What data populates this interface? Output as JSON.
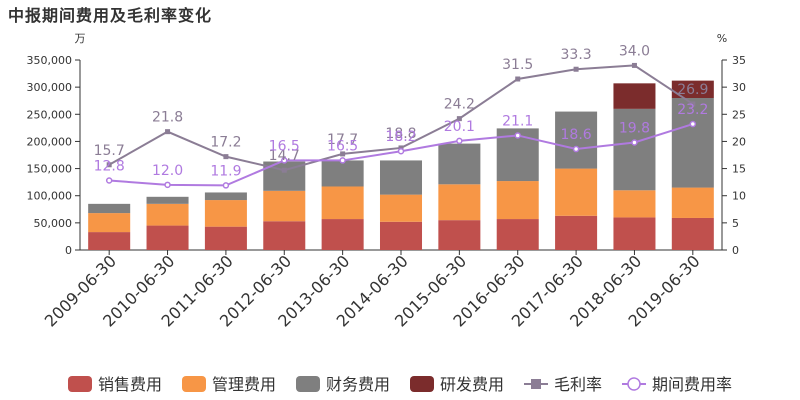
{
  "chart_data": {
    "type": "bar",
    "title": "中报期间费用及毛利率变化",
    "y_left_unit": "万",
    "y_right_unit": "%",
    "categories": [
      "2009-06-30",
      "2010-06-30",
      "2011-06-30",
      "2012-06-30",
      "2013-06-30",
      "2014-06-30",
      "2015-06-30",
      "2016-06-30",
      "2017-06-30",
      "2018-06-30",
      "2019-06-30"
    ],
    "ylim": [
      0,
      350000
    ],
    "yticks": [
      0,
      50000,
      100000,
      150000,
      200000,
      250000,
      300000,
      350000
    ],
    "ytick_labels": [
      "0",
      "50,000",
      "100,000",
      "150,000",
      "200,000",
      "250,000",
      "300,000",
      "350,000"
    ],
    "y2lim": [
      0,
      35
    ],
    "y2ticks": [
      0,
      5,
      10,
      15,
      20,
      25,
      30,
      35
    ],
    "y2tick_labels": [
      "0",
      "5",
      "10",
      "15",
      "20",
      "25",
      "30",
      "35"
    ],
    "stacked_series": [
      {
        "name": "销售费用",
        "color": "#c0504d",
        "values": [
          33000,
          45000,
          43000,
          53000,
          57000,
          52000,
          55000,
          57000,
          63000,
          60000,
          59000
        ]
      },
      {
        "name": "管理费用",
        "color": "#f79646",
        "values": [
          35000,
          40000,
          49000,
          56000,
          60000,
          50000,
          66000,
          70000,
          87000,
          50000,
          56000
        ]
      },
      {
        "name": "财务费用",
        "color": "#7f7f7f",
        "values": [
          17000,
          13000,
          14000,
          54000,
          48000,
          63000,
          75000,
          97000,
          105000,
          150000,
          165000
        ]
      },
      {
        "name": "研发费用",
        "color": "#7b2c2c",
        "values": [
          0,
          0,
          0,
          0,
          0,
          0,
          0,
          0,
          0,
          47000,
          32000
        ]
      }
    ],
    "line_series": [
      {
        "name": "毛利率",
        "color": "#8b7d95",
        "marker": "square",
        "values": [
          15.7,
          21.8,
          17.2,
          14.7,
          17.7,
          18.8,
          24.2,
          31.5,
          33.3,
          34.0,
          26.9
        ],
        "labels": [
          "15.7",
          "21.8",
          "17.2",
          "14.7",
          "17.7",
          "18.8",
          "24.2",
          "31.5",
          "33.3",
          "34.0",
          "26.9"
        ]
      },
      {
        "name": "期间费用率",
        "color": "#b07ae0",
        "marker": "circle",
        "values": [
          12.8,
          12.0,
          11.9,
          16.5,
          16.5,
          18.2,
          20.1,
          21.1,
          18.6,
          19.8,
          23.2
        ],
        "labels": [
          "12.8",
          "12.0",
          "11.9",
          "16.5",
          "16.5",
          "18.2",
          "20.1",
          "21.1",
          "18.6",
          "19.8",
          "23.2"
        ]
      }
    ],
    "legend_position": "bottom",
    "grid": false
  }
}
